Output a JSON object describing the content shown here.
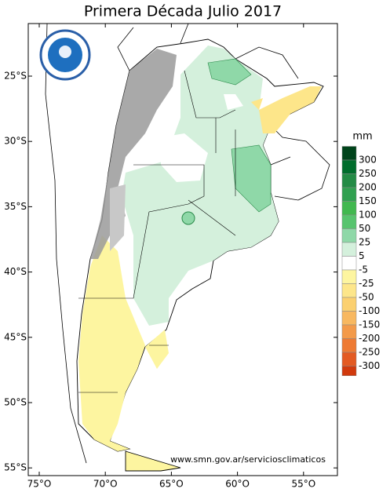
{
  "title": "Primera Década Julio 2017",
  "latitude_labels": [
    "25°S",
    "30°S",
    "35°S",
    "40°S",
    "45°S",
    "50°S",
    "55°S"
  ],
  "longitude_labels": [
    "75°O",
    "70°O",
    "65°O",
    "60°O",
    "55°O"
  ],
  "legend": {
    "unit": "mm",
    "labels": [
      "300",
      "250",
      "200",
      "150",
      "100",
      "50",
      "25",
      "5",
      "-5",
      "-25",
      "-50",
      "-100",
      "-150",
      "-200",
      "-250",
      "-300"
    ],
    "colors": [
      "#00441b",
      "#006d2c",
      "#238b45",
      "#30a050",
      "#41b84f",
      "#57c46e",
      "#8fd8a8",
      "#d4f0dc",
      "#ffffff",
      "#fdf5a0",
      "#fde68a",
      "#fbd070",
      "#f8b860",
      "#f39a4a",
      "#ee7a33",
      "#e35a22",
      "#d13a0d"
    ]
  },
  "source": "www.smn.gov.ar/serviciosclimaticos"
}
